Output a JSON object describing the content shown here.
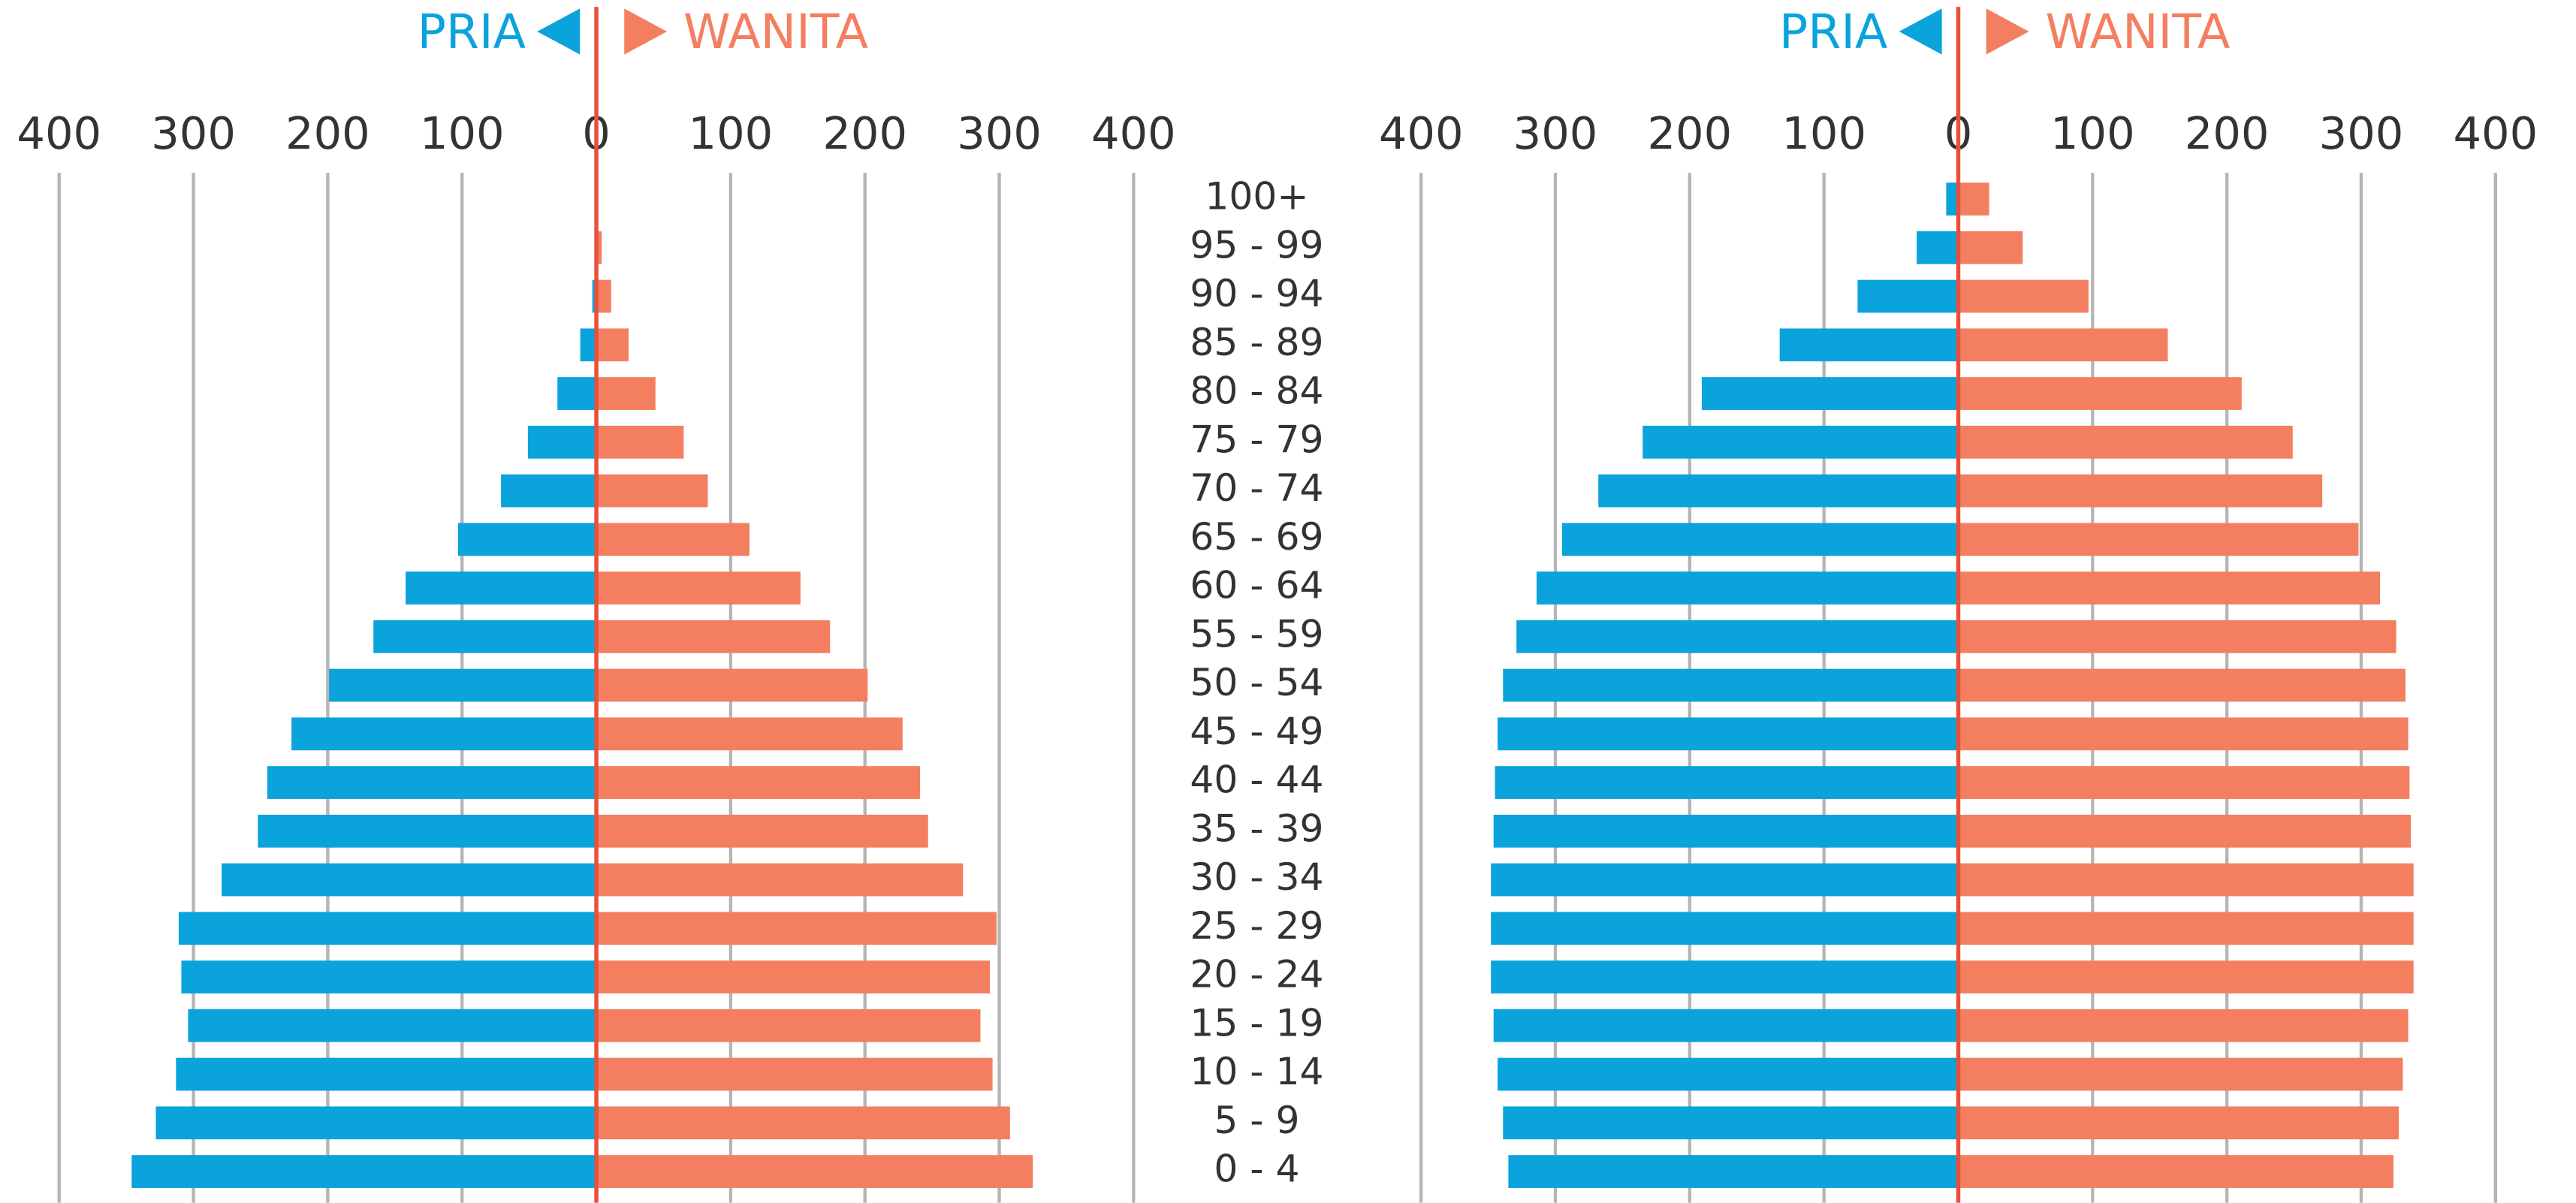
{
  "chart_data": [
    {
      "type": "pyramid",
      "categories": [
        "100+",
        "95 - 99",
        "90 - 94",
        "85 - 89",
        "80 - 84",
        "75 - 79",
        "70 - 74",
        "65 - 69",
        "60 - 64",
        "55 - 59",
        "50 - 54",
        "45 - 49",
        "40 - 44",
        "35 - 39",
        "30 - 34",
        "25 - 29",
        "20 - 24",
        "15 - 19",
        "10 - 14",
        "5 - 9",
        "0 - 4"
      ],
      "series": [
        {
          "name": "PRIA",
          "color": "#0aa3dc",
          "values": [
            0,
            0,
            3,
            12,
            29,
            51,
            71,
            103,
            142,
            166,
            199,
            227,
            245,
            252,
            279,
            311,
            309,
            304,
            313,
            328,
            346
          ]
        },
        {
          "name": "WANITA",
          "color": "#f47f60",
          "values": [
            0,
            4,
            11,
            24,
            44,
            65,
            83,
            114,
            152,
            174,
            202,
            228,
            241,
            247,
            273,
            298,
            293,
            286,
            295,
            308,
            325
          ]
        }
      ],
      "xlim": [
        0,
        400
      ],
      "xticks": [
        0,
        100,
        200,
        300,
        400
      ],
      "grid": true
    },
    {
      "type": "pyramid",
      "series": [
        {
          "name": "PRIA",
          "color": "#0aa3dc",
          "values": [
            9,
            31,
            75,
            133,
            191,
            235,
            268,
            295,
            314,
            329,
            339,
            343,
            345,
            346,
            348,
            348,
            348,
            346,
            343,
            339,
            335
          ]
        },
        {
          "name": "WANITA",
          "color": "#f47f60",
          "values": [
            23,
            48,
            97,
            156,
            211,
            249,
            271,
            298,
            314,
            326,
            333,
            335,
            336,
            337,
            339,
            339,
            339,
            335,
            331,
            328,
            324
          ]
        }
      ],
      "xlim": [
        0,
        400
      ],
      "xticks": [
        0,
        100,
        200,
        300,
        400
      ],
      "grid": true
    }
  ]
}
